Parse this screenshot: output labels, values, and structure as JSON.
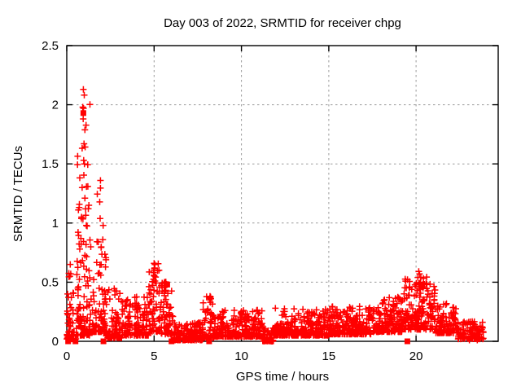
{
  "chart_data": {
    "type": "scatter",
    "title": "Day 003 of 2022, SRMTID for receiver chpg",
    "xlabel": "GPS time / hours",
    "ylabel": "SRMTID / TECUs",
    "xlim": [
      0,
      24.7
    ],
    "ylim": [
      0,
      2.5
    ],
    "xticks": {
      "values": [
        0,
        5,
        10,
        15,
        20
      ],
      "labels": [
        "0",
        "5",
        "10",
        "15",
        "20"
      ]
    },
    "yticks": {
      "values": [
        0,
        0.5,
        1,
        1.5,
        2,
        2.5
      ],
      "labels": [
        "0",
        "0.5",
        "1",
        "1.5",
        "2",
        "2.5"
      ]
    },
    "grid": true,
    "legend": "none",
    "colors": {
      "marker": "#ff0000",
      "grid": "#9a9a9a",
      "axis": "#000000",
      "background": "#ffffff"
    },
    "series": [
      {
        "name": "srmtid",
        "marker": "plus",
        "envelope_note": "segments [t_start,t_end,n_points,y_min,y_max,skew] describing the scatter density read from the plot",
        "envelope": [
          [
            0.0,
            0.55,
            55,
            0.02,
            0.68,
            3.5
          ],
          [
            0.55,
            1.35,
            120,
            0.05,
            2.15,
            3.0
          ],
          [
            1.35,
            2.25,
            95,
            0.08,
            1.3,
            2.8
          ],
          [
            2.25,
            3.2,
            85,
            0.03,
            0.45,
            3.0
          ],
          [
            3.2,
            4.7,
            130,
            0.05,
            0.4,
            2.6
          ],
          [
            4.7,
            5.35,
            65,
            0.08,
            0.66,
            1.8
          ],
          [
            5.35,
            6.1,
            65,
            0.06,
            0.52,
            2.0
          ],
          [
            6.1,
            7.8,
            150,
            0.01,
            0.16,
            2.2
          ],
          [
            7.8,
            8.45,
            60,
            0.03,
            0.38,
            2.4
          ],
          [
            8.45,
            11.25,
            270,
            0.04,
            0.27,
            2.6
          ],
          [
            11.25,
            11.85,
            45,
            0.0,
            0.12,
            2.0
          ],
          [
            11.85,
            15.0,
            300,
            0.05,
            0.28,
            2.8
          ],
          [
            15.0,
            17.5,
            240,
            0.06,
            0.3,
            2.6
          ],
          [
            17.5,
            19.3,
            175,
            0.08,
            0.38,
            2.4
          ],
          [
            19.3,
            21.1,
            175,
            0.1,
            0.55,
            1.8
          ],
          [
            21.1,
            22.4,
            110,
            0.07,
            0.32,
            2.4
          ],
          [
            22.4,
            23.9,
            95,
            0.02,
            0.18,
            2.2
          ]
        ],
        "peak_points": [
          [
            0.95,
            2.13
          ],
          [
            0.92,
            1.98
          ],
          [
            0.96,
            1.97
          ],
          [
            0.94,
            1.88
          ],
          [
            0.99,
            1.67
          ],
          [
            0.97,
            1.53
          ],
          [
            1.01,
            1.5
          ],
          [
            0.88,
            1.3
          ],
          [
            1.04,
            1.21
          ],
          [
            1.08,
            1.12
          ],
          [
            0.85,
            1.05
          ],
          [
            1.12,
            0.98
          ],
          [
            1.93,
            1.36
          ],
          [
            0.2,
            0.65
          ],
          [
            0.23,
            0.57
          ],
          [
            0.18,
            0.55
          ],
          [
            0.26,
            0.37
          ],
          [
            5.0,
            0.66
          ],
          [
            5.03,
            0.62
          ],
          [
            4.97,
            0.58
          ],
          [
            5.6,
            0.5
          ],
          [
            5.65,
            0.46
          ],
          [
            8.2,
            0.38
          ],
          [
            8.22,
            0.33
          ],
          [
            20.15,
            0.59
          ],
          [
            20.2,
            0.57
          ],
          [
            20.1,
            0.54
          ],
          [
            20.25,
            0.5
          ],
          [
            23.05,
            0.01
          ],
          [
            23.5,
            0.01
          ]
        ]
      },
      {
        "name": "srmtid-flagged",
        "marker": "square",
        "points": [
          [
            0.08,
            0
          ],
          [
            0.5,
            0
          ],
          [
            0.95,
            1.93
          ],
          [
            2.1,
            0
          ],
          [
            5.75,
            0.48
          ],
          [
            6.0,
            0
          ],
          [
            8.15,
            0
          ],
          [
            11.35,
            0
          ],
          [
            11.7,
            0
          ],
          [
            19.5,
            0
          ],
          [
            20.3,
            0.46
          ]
        ]
      }
    ]
  }
}
